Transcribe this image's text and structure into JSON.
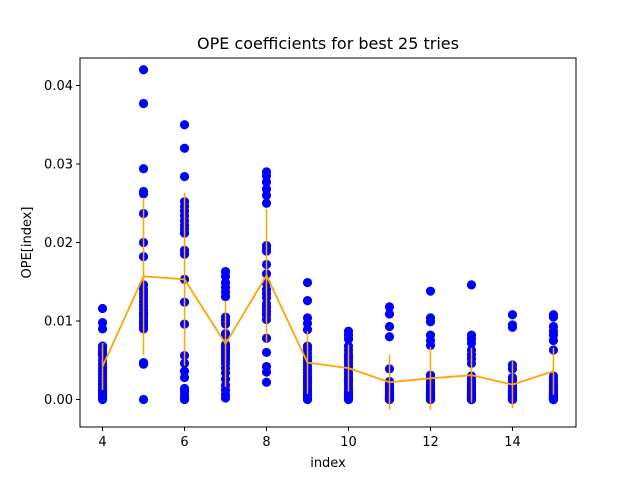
{
  "chart_data": {
    "type": "scatter",
    "title": "OPE coefficients for best 25 tries",
    "xlabel": "index",
    "ylabel": "OPE[index]",
    "xlim": [
      3.45,
      15.55
    ],
    "ylim": [
      -0.0035,
      0.0435
    ],
    "x_ticks": [
      4,
      6,
      8,
      10,
      12,
      14
    ],
    "y_ticks": [
      0.0,
      0.01,
      0.02,
      0.03,
      0.04
    ],
    "y_tick_labels": [
      "0.00",
      "0.01",
      "0.02",
      "0.03",
      "0.04"
    ],
    "grid": false,
    "colors": {
      "points": "#0000ff",
      "mean_line": "#ffa500",
      "axes": "#000000"
    },
    "series": [
      {
        "kind": "points",
        "groups": [
          {
            "x": 4,
            "y": [
              0.0116,
              0.0098,
              0.009,
              0.0068,
              0.0065,
              0.0062,
              0.0059,
              0.0056,
              0.005,
              0.0045,
              0.004,
              0.0036,
              0.0032,
              0.0028,
              0.0024,
              0.002,
              0.0018,
              0.0015,
              0.0012,
              0.001,
              0.0008,
              0.0006,
              0.0004,
              0.0002,
              0.0
            ]
          },
          {
            "x": 5,
            "y": [
              0.042,
              0.0377,
              0.0294,
              0.0265,
              0.0262,
              0.0237,
              0.02,
              0.0182,
              0.0146,
              0.014,
              0.0135,
              0.013,
              0.0125,
              0.012,
              0.0115,
              0.011,
              0.0107,
              0.0104,
              0.01,
              0.0097,
              0.0093,
              0.009,
              0.0047,
              0.0045,
              0.0
            ]
          },
          {
            "x": 6,
            "y": [
              0.035,
              0.032,
              0.0284,
              0.0252,
              0.0246,
              0.024,
              0.0234,
              0.0228,
              0.0222,
              0.0217,
              0.0212,
              0.019,
              0.0185,
              0.0153,
              0.0124,
              0.0096,
              0.0056,
              0.0046,
              0.0036,
              0.0028,
              0.0014,
              0.001,
              0.0005,
              0.0002,
              0.0
            ]
          },
          {
            "x": 7,
            "y": [
              0.0163,
              0.0157,
              0.0149,
              0.0143,
              0.0137,
              0.0131,
              0.0105,
              0.0101,
              0.0096,
              0.0084,
              0.0082,
              0.007,
              0.0066,
              0.0062,
              0.0058,
              0.0054,
              0.005,
              0.0046,
              0.004,
              0.0034,
              0.0026,
              0.0018,
              0.0012,
              0.0006,
              0.0002
            ]
          },
          {
            "x": 8,
            "y": [
              0.029,
              0.0285,
              0.0277,
              0.0268,
              0.026,
              0.025,
              0.0196,
              0.0193,
              0.0189,
              0.0172,
              0.016,
              0.0148,
              0.014,
              0.0135,
              0.013,
              0.0122,
              0.0117,
              0.0112,
              0.0108,
              0.0102,
              0.0078,
              0.006,
              0.0042,
              0.0035,
              0.0022
            ]
          },
          {
            "x": 9,
            "y": [
              0.0149,
              0.0126,
              0.0104,
              0.0097,
              0.0089,
              0.0068,
              0.0064,
              0.0059,
              0.0054,
              0.005,
              0.0046,
              0.0042,
              0.0038,
              0.0034,
              0.003,
              0.0026,
              0.0022,
              0.0018,
              0.0014,
              0.0011,
              0.0008,
              0.0005,
              0.0003,
              0.0001,
              0.0
            ]
          },
          {
            "x": 10,
            "y": [
              0.0087,
              0.0082,
              0.0077,
              0.0068,
              0.0063,
              0.0058,
              0.0054,
              0.005,
              0.0046,
              0.0042,
              0.0038,
              0.0034,
              0.003,
              0.0026,
              0.0022,
              0.0018,
              0.0014,
              0.001,
              0.0008,
              0.0006,
              0.0004,
              0.0003,
              0.0002,
              0.0001,
              0.0
            ]
          },
          {
            "x": 11,
            "y": [
              0.0118,
              0.0109,
              0.0093,
              0.008,
              0.0039,
              0.0023,
              0.0019,
              0.0016,
              0.0014,
              0.0012,
              0.001,
              0.0009,
              0.0008,
              0.0007,
              0.0006,
              0.0005,
              0.0004,
              0.0003,
              0.0003,
              0.0002,
              0.0002,
              0.0001,
              0.0001,
              0.0,
              0.0
            ]
          },
          {
            "x": 12,
            "y": [
              0.0138,
              0.0104,
              0.0099,
              0.0082,
              0.0075,
              0.0069,
              0.0031,
              0.0028,
              0.0025,
              0.0022,
              0.0019,
              0.0016,
              0.0014,
              0.0012,
              0.001,
              0.0008,
              0.0007,
              0.0006,
              0.0005,
              0.0004,
              0.0003,
              0.0002,
              0.0001,
              0.0,
              0.0
            ]
          },
          {
            "x": 13,
            "y": [
              0.0146,
              0.0082,
              0.0077,
              0.0072,
              0.0063,
              0.0057,
              0.0052,
              0.0046,
              0.003,
              0.0026,
              0.0022,
              0.0019,
              0.0016,
              0.0013,
              0.0011,
              0.0009,
              0.0007,
              0.0006,
              0.0005,
              0.0004,
              0.0003,
              0.0002,
              0.0001,
              0.0,
              0.0
            ]
          },
          {
            "x": 14,
            "y": [
              0.0108,
              0.0095,
              0.0092,
              0.0044,
              0.0039,
              0.0028,
              0.0024,
              0.0021,
              0.0018,
              0.0016,
              0.0014,
              0.0012,
              0.001,
              0.0009,
              0.0008,
              0.0007,
              0.0006,
              0.0005,
              0.0004,
              0.0003,
              0.0002,
              0.0001,
              0.0001,
              0.0,
              0.0
            ]
          },
          {
            "x": 15,
            "y": [
              0.0108,
              0.0105,
              0.0093,
              0.0087,
              0.0082,
              0.0075,
              0.0063,
              0.003,
              0.0026,
              0.0022,
              0.0019,
              0.0016,
              0.0013,
              0.0011,
              0.0009,
              0.0007,
              0.0006,
              0.0005,
              0.0004,
              0.0003,
              0.0002,
              0.0001,
              0.0001,
              0.0,
              0.0
            ]
          }
        ]
      },
      {
        "kind": "mean_with_errorbars",
        "x": [
          4,
          5,
          6,
          7,
          8,
          9,
          10,
          11,
          12,
          13,
          14,
          15
        ],
        "y": [
          0.0042,
          0.0157,
          0.0153,
          0.0071,
          0.0158,
          0.0047,
          0.004,
          0.0022,
          0.0027,
          0.0031,
          0.0019,
          0.0036
        ],
        "yerr": [
          0.003,
          0.01,
          0.011,
          0.0055,
          0.0085,
          0.004,
          0.003,
          0.0035,
          0.004,
          0.0035,
          0.003,
          0.003
        ]
      }
    ]
  }
}
